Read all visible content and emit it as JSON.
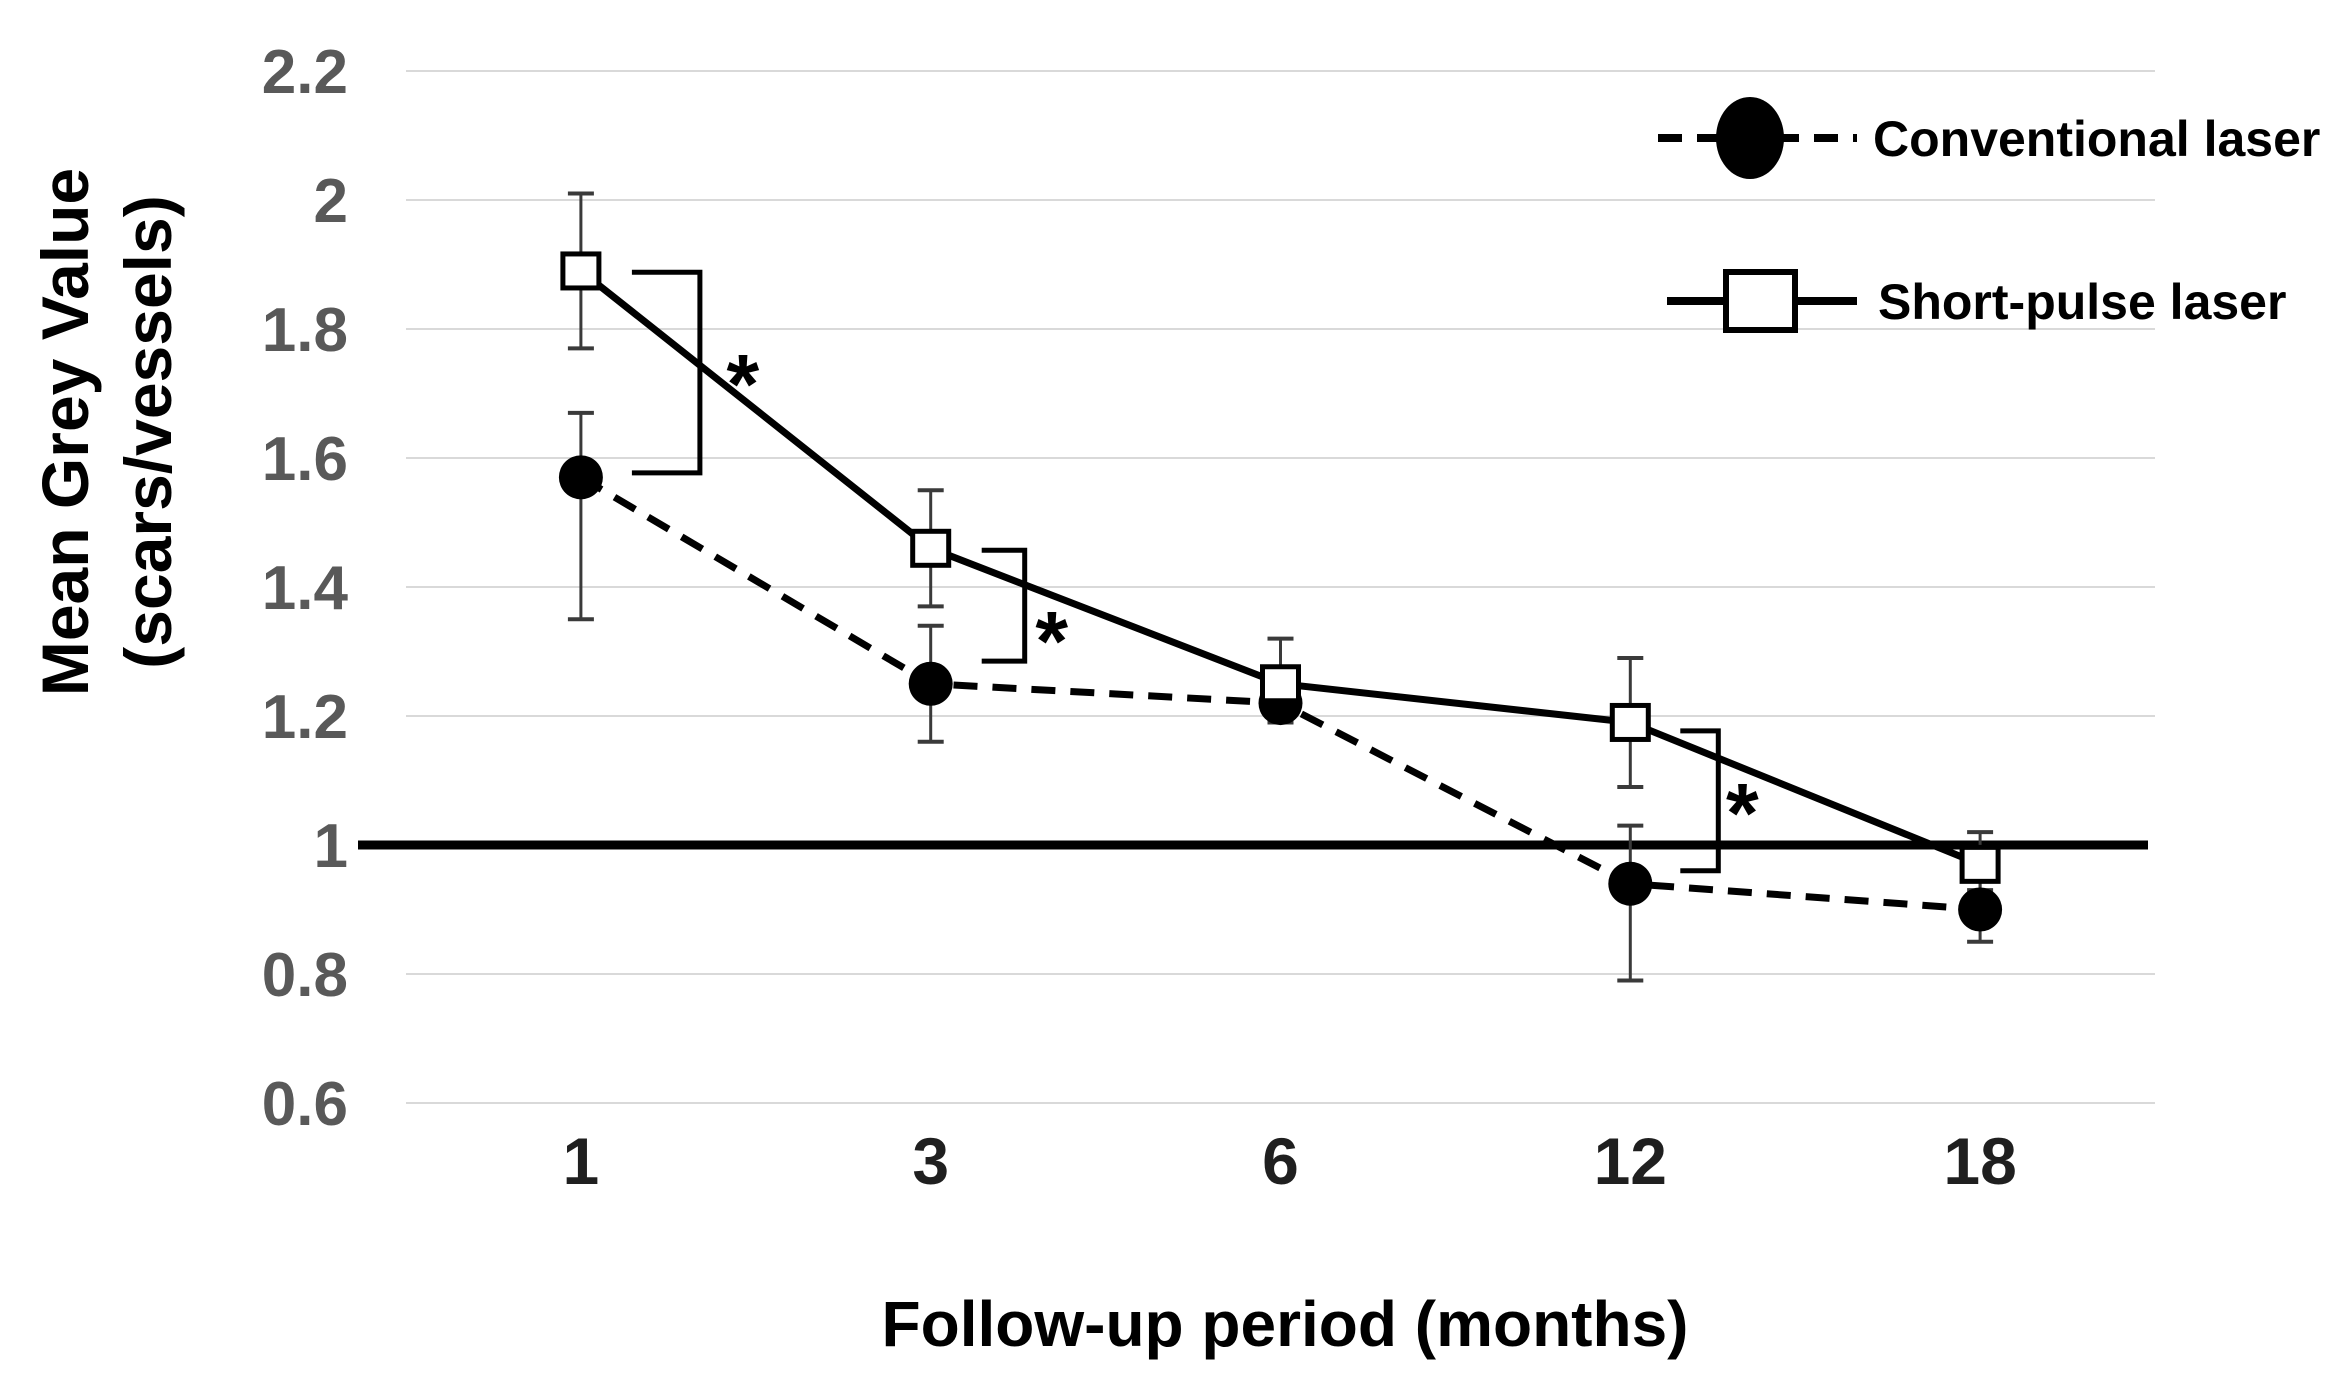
{
  "figure": {
    "type": "line-chart-with-error-bars",
    "y_axis_title": {
      "line1": "Mean Grey Value",
      "line2": "(scars/vessels)"
    },
    "x_axis_title": "Follow-up period (months)",
    "colors": {
      "series": "#000000",
      "grid": "#d9d9d9",
      "y_tick": "#595959",
      "x_tick": "#1f1f1f",
      "reference_line": "#000000",
      "error_bar": "#3a3a3a",
      "background": "#ffffff"
    }
  },
  "legend": {
    "position": "top-right",
    "items": [
      {
        "label": "Conventional laser",
        "marker": "filled-ellipse",
        "line_style": "dashed"
      },
      {
        "label": "Short-pulse laser",
        "marker": "open-square",
        "line_style": "solid"
      }
    ]
  },
  "chart_data": {
    "type": "line",
    "title": "",
    "xlabel": "Follow-up period (months)",
    "ylabel": "Mean Grey Value (scars/vessels)",
    "categories": [
      "1",
      "3",
      "6",
      "12",
      "18"
    ],
    "y_ticks": [
      "2.2",
      "2",
      "1.8",
      "1.6",
      "1.4",
      "1.2",
      "1",
      "0.8",
      "0.6"
    ],
    "ylim": [
      0.6,
      2.2
    ],
    "grid": "horizontal",
    "legend_position": "top-right",
    "reference_line_y": 1.0,
    "series": [
      {
        "name": "Conventional laser",
        "marker": "filled-circle",
        "line_style": "dashed",
        "values": [
          1.57,
          1.25,
          1.22,
          0.94,
          0.9
        ],
        "error_low": [
          1.35,
          1.16,
          null,
          0.79,
          0.85
        ],
        "error_high": [
          1.67,
          1.34,
          null,
          1.03,
          0.95
        ]
      },
      {
        "name": "Short-pulse laser",
        "marker": "open-square",
        "line_style": "solid",
        "values": [
          1.89,
          1.46,
          1.25,
          1.19,
          0.97
        ],
        "error_low": [
          1.77,
          1.37,
          1.19,
          1.09,
          0.93
        ],
        "error_high": [
          2.01,
          1.55,
          1.32,
          1.29,
          1.02
        ]
      }
    ],
    "significance": [
      {
        "label": "*",
        "category_index": 0,
        "top_value": 1.888,
        "bottom_value": 1.577,
        "dx": 119,
        "arm": 68,
        "star_dx": 43,
        "star_value": 1.732
      },
      {
        "label": "*",
        "category_index": 1,
        "top_value": 1.457,
        "bottom_value": 1.285,
        "dx": 94,
        "arm": 43,
        "star_dx": 27,
        "star_value": 1.333
      },
      {
        "label": "*",
        "category_index": 3,
        "top_value": 1.177,
        "bottom_value": 0.96,
        "dx": 88,
        "arm": 38,
        "star_dx": 24,
        "star_value": 1.067
      }
    ]
  }
}
